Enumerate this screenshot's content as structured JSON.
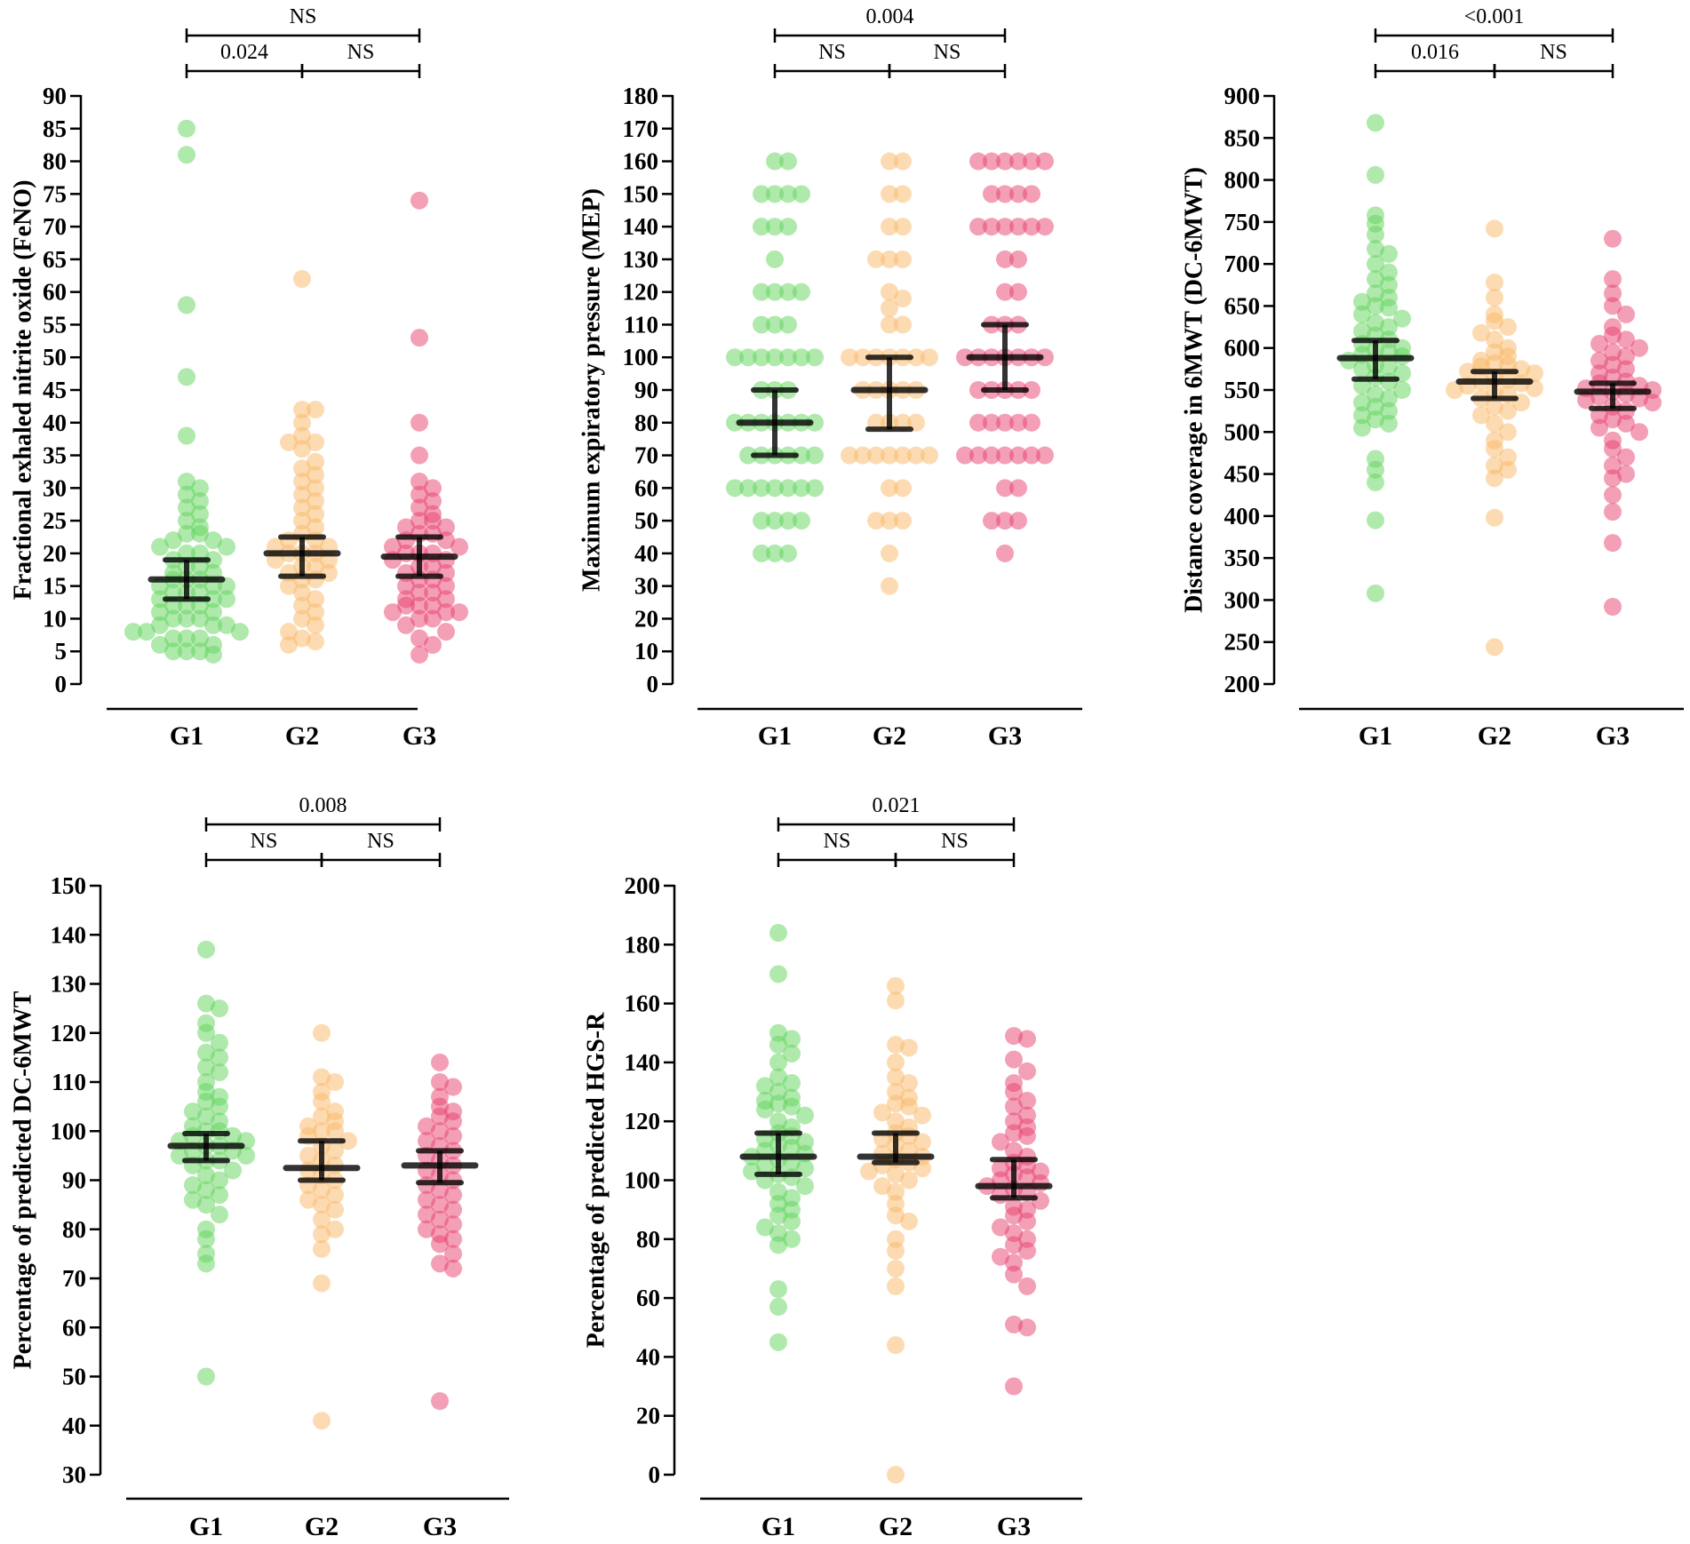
{
  "chart_data": [
    {
      "type": "scatter",
      "ylabel": "Fractional exhaled nitrite oxide (FeNO)",
      "ylim": [
        0,
        90
      ],
      "ytick_step": 5,
      "categories": [
        "G1",
        "G2",
        "G3"
      ],
      "series": [
        {
          "name": "G1",
          "color": "#5fd35a",
          "median": 16,
          "ci": [
            13,
            19
          ],
          "values": [
            85,
            81,
            58,
            47,
            38,
            31,
            30,
            29,
            28,
            27,
            26,
            25,
            24,
            23,
            23,
            22,
            22,
            21,
            21,
            20,
            20,
            19,
            19,
            18,
            18,
            17,
            17,
            16,
            16,
            16,
            15,
            15,
            15,
            14,
            14,
            14,
            13,
            13,
            13,
            12,
            12,
            12,
            11,
            11,
            10,
            10,
            10,
            9,
            9,
            9,
            8,
            8,
            8,
            7,
            7,
            7,
            6,
            6,
            5,
            5,
            5,
            4.5
          ]
        },
        {
          "name": "G2",
          "color": "#f9b866",
          "median": 20,
          "ci": [
            16.5,
            22.5
          ],
          "values": [
            62,
            42,
            42,
            40,
            38,
            37,
            37,
            36,
            34,
            33,
            32,
            31,
            30,
            29,
            28,
            27,
            26,
            25,
            24,
            23,
            22,
            22,
            21,
            21,
            20,
            20,
            20,
            19,
            19,
            18,
            18,
            17,
            17,
            16,
            16,
            15,
            14,
            13,
            12,
            11,
            10,
            9,
            8,
            7,
            6.5,
            6
          ]
        },
        {
          "name": "G3",
          "color": "#e8406e",
          "median": 19.5,
          "ci": [
            16.5,
            22.5
          ],
          "values": [
            74,
            53,
            40,
            35,
            31,
            30,
            29,
            28,
            27,
            26,
            25,
            25,
            24,
            24,
            23,
            23,
            22,
            22,
            21,
            21,
            20,
            20,
            20,
            19,
            19,
            18,
            18,
            17,
            17,
            16,
            16,
            15,
            15,
            14,
            14,
            13,
            13,
            12,
            12,
            12,
            11,
            11,
            11,
            10,
            10,
            9,
            8,
            7,
            6,
            4.5
          ]
        }
      ],
      "comparisons": [
        {
          "from": "G1",
          "to": "G3",
          "label": "NS",
          "level": 2
        },
        {
          "from": "G1",
          "to": "G2",
          "label": "0.024",
          "level": 1
        },
        {
          "from": "G2",
          "to": "G3",
          "label": "NS",
          "level": 1
        }
      ]
    },
    {
      "type": "scatter",
      "ylabel": "Maximum expiratory pressure (MEP)",
      "ylim": [
        0,
        180
      ],
      "ytick_step": 10,
      "categories": [
        "G1",
        "G2",
        "G3"
      ],
      "series": [
        {
          "name": "G1",
          "color": "#5fd35a",
          "median": 80,
          "ci": [
            70,
            90
          ],
          "values": [
            160,
            160,
            150,
            150,
            150,
            150,
            140,
            140,
            140,
            130,
            120,
            120,
            120,
            120,
            110,
            110,
            110,
            100,
            100,
            100,
            100,
            100,
            100,
            100,
            90,
            90,
            90,
            80,
            80,
            80,
            80,
            80,
            80,
            80,
            70,
            70,
            70,
            70,
            70,
            70,
            60,
            60,
            60,
            60,
            60,
            60,
            60,
            50,
            50,
            50,
            50,
            40,
            40,
            40
          ]
        },
        {
          "name": "G2",
          "color": "#f9b866",
          "median": 90,
          "ci": [
            78,
            100
          ],
          "values": [
            160,
            160,
            150,
            150,
            140,
            140,
            130,
            130,
            130,
            120,
            118,
            115,
            110,
            110,
            100,
            100,
            100,
            100,
            100,
            100,
            100,
            90,
            90,
            90,
            90,
            90,
            80,
            80,
            80,
            80,
            70,
            70,
            70,
            70,
            70,
            70,
            70,
            60,
            60,
            50,
            50,
            50,
            40,
            30
          ]
        },
        {
          "name": "G3",
          "color": "#e8406e",
          "median": 100,
          "ci": [
            90,
            110
          ],
          "values": [
            160,
            160,
            160,
            160,
            160,
            160,
            150,
            150,
            150,
            150,
            140,
            140,
            140,
            140,
            140,
            140,
            130,
            130,
            120,
            120,
            110,
            110,
            110,
            100,
            100,
            100,
            100,
            100,
            100,
            100,
            90,
            90,
            90,
            90,
            90,
            80,
            80,
            80,
            80,
            80,
            70,
            70,
            70,
            70,
            70,
            70,
            70,
            60,
            60,
            50,
            50,
            50,
            40
          ]
        }
      ],
      "comparisons": [
        {
          "from": "G1",
          "to": "G3",
          "label": "0.004",
          "level": 2
        },
        {
          "from": "G1",
          "to": "G2",
          "label": "NS",
          "level": 1
        },
        {
          "from": "G2",
          "to": "G3",
          "label": "NS",
          "level": 1
        }
      ]
    },
    {
      "type": "scatter",
      "ylabel": "Distance coverage in 6MWT (DC-6MWT)",
      "ylim": [
        200,
        900
      ],
      "ytick_step": 50,
      "categories": [
        "G1",
        "G2",
        "G3"
      ],
      "series": [
        {
          "name": "G1",
          "color": "#5fd35a",
          "median": 588,
          "ci": [
            563,
            609
          ],
          "values": [
            868,
            806,
            758,
            748,
            735,
            718,
            712,
            700,
            690,
            682,
            675,
            665,
            660,
            655,
            650,
            648,
            640,
            635,
            630,
            625,
            620,
            615,
            610,
            605,
            600,
            598,
            595,
            592,
            590,
            585,
            580,
            578,
            575,
            570,
            565,
            560,
            555,
            550,
            545,
            540,
            535,
            530,
            525,
            520,
            515,
            510,
            505,
            468,
            455,
            440,
            395,
            308
          ]
        },
        {
          "name": "G2",
          "color": "#f9b866",
          "median": 560,
          "ci": [
            540,
            572
          ],
          "values": [
            742,
            678,
            660,
            640,
            632,
            625,
            618,
            610,
            600,
            595,
            590,
            585,
            582,
            580,
            578,
            575,
            572,
            570,
            565,
            562,
            560,
            558,
            555,
            552,
            550,
            548,
            545,
            540,
            535,
            530,
            525,
            520,
            510,
            500,
            490,
            480,
            470,
            460,
            455,
            445,
            398,
            244
          ]
        },
        {
          "name": "G3",
          "color": "#e8406e",
          "median": 548,
          "ci": [
            528,
            558
          ],
          "values": [
            730,
            682,
            665,
            650,
            640,
            625,
            615,
            610,
            605,
            600,
            595,
            590,
            585,
            580,
            575,
            570,
            565,
            560,
            558,
            555,
            552,
            550,
            548,
            545,
            542,
            540,
            538,
            535,
            530,
            525,
            520,
            515,
            510,
            505,
            500,
            490,
            480,
            470,
            460,
            450,
            445,
            425,
            405,
            368,
            292
          ]
        }
      ],
      "comparisons": [
        {
          "from": "G1",
          "to": "G3",
          "label": "<0.001",
          "level": 2
        },
        {
          "from": "G1",
          "to": "G2",
          "label": "0.016",
          "level": 1
        },
        {
          "from": "G2",
          "to": "G3",
          "label": "NS",
          "level": 1
        }
      ]
    },
    {
      "type": "scatter",
      "ylabel": "Percentage of predicted DC-6MWT",
      "ylim": [
        30,
        150
      ],
      "ytick_step": 10,
      "categories": [
        "G1",
        "G2",
        "G3"
      ],
      "series": [
        {
          "name": "G1",
          "color": "#5fd35a",
          "median": 97,
          "ci": [
            94,
            99.5
          ],
          "values": [
            137,
            126,
            125,
            122,
            120,
            118,
            116,
            115,
            113,
            112,
            110,
            108,
            107,
            106,
            105,
            104,
            103,
            102,
            101,
            100,
            100,
            99,
            99,
            98,
            98,
            97,
            97,
            96,
            96,
            95,
            95,
            94,
            94,
            93,
            92,
            91,
            90,
            89,
            88,
            87,
            86,
            85,
            83,
            80,
            78,
            75,
            73,
            50
          ]
        },
        {
          "name": "G2",
          "color": "#f9b866",
          "median": 92.5,
          "ci": [
            90,
            98
          ],
          "values": [
            120,
            111,
            110,
            108,
            106,
            104,
            103,
            102,
            101,
            100,
            100,
            99,
            98,
            97,
            96,
            95,
            94,
            93,
            92,
            91,
            90,
            89,
            88,
            87,
            86,
            85,
            84,
            82,
            80,
            79,
            76,
            69,
            41
          ]
        },
        {
          "name": "G3",
          "color": "#e8406e",
          "median": 93,
          "ci": [
            89.5,
            96
          ],
          "values": [
            114,
            110,
            109,
            107,
            105,
            104,
            103,
            102,
            101,
            100,
            99,
            98,
            97,
            96,
            95,
            94,
            93,
            92,
            91,
            90,
            89,
            88,
            87,
            86,
            85,
            84,
            83,
            82,
            81,
            80,
            79,
            78,
            77,
            75,
            73,
            72,
            45
          ]
        }
      ],
      "comparisons": [
        {
          "from": "G1",
          "to": "G3",
          "label": "0.008",
          "level": 2
        },
        {
          "from": "G1",
          "to": "G2",
          "label": "NS",
          "level": 1
        },
        {
          "from": "G2",
          "to": "G3",
          "label": "NS",
          "level": 1
        }
      ]
    },
    {
      "type": "scatter",
      "ylabel": "Percentage of predicted HGS-R",
      "ylim": [
        0,
        200
      ],
      "ytick_step": 20,
      "categories": [
        "G1",
        "G2",
        "G3"
      ],
      "series": [
        {
          "name": "G1",
          "color": "#5fd35a",
          "median": 108,
          "ci": [
            102,
            116
          ],
          "values": [
            184,
            170,
            150,
            148,
            146,
            143,
            140,
            135,
            133,
            132,
            130,
            128,
            127,
            126,
            125,
            124,
            122,
            120,
            118,
            116,
            115,
            114,
            113,
            112,
            111,
            110,
            109,
            108,
            107,
            106,
            105,
            104,
            103,
            102,
            101,
            100,
            98,
            96,
            94,
            92,
            90,
            88,
            86,
            84,
            82,
            80,
            78,
            63,
            57,
            45
          ]
        },
        {
          "name": "G2",
          "color": "#f9b866",
          "median": 108,
          "ci": [
            106,
            116
          ],
          "values": [
            166,
            161,
            146,
            145,
            140,
            135,
            133,
            130,
            128,
            126,
            125,
            123,
            122,
            120,
            118,
            116,
            115,
            114,
            113,
            112,
            110,
            109,
            108,
            107,
            106,
            105,
            104,
            103,
            102,
            100,
            98,
            96,
            92,
            88,
            86,
            80,
            76,
            70,
            64,
            44,
            0
          ]
        },
        {
          "name": "G3",
          "color": "#e8406e",
          "median": 98,
          "ci": [
            94,
            107
          ],
          "values": [
            149,
            148,
            141,
            137,
            133,
            130,
            127,
            125,
            122,
            120,
            118,
            116,
            115,
            113,
            110,
            108,
            106,
            105,
            104,
            103,
            102,
            101,
            100,
            99,
            98,
            97,
            96,
            95,
            93,
            91,
            90,
            88,
            86,
            84,
            82,
            80,
            78,
            76,
            74,
            72,
            68,
            64,
            51,
            50,
            30
          ]
        }
      ],
      "comparisons": [
        {
          "from": "G1",
          "to": "G3",
          "label": "0.021",
          "level": 2
        },
        {
          "from": "G1",
          "to": "G2",
          "label": "NS",
          "level": 1
        },
        {
          "from": "G2",
          "to": "G3",
          "label": "NS",
          "level": 1
        }
      ]
    }
  ]
}
